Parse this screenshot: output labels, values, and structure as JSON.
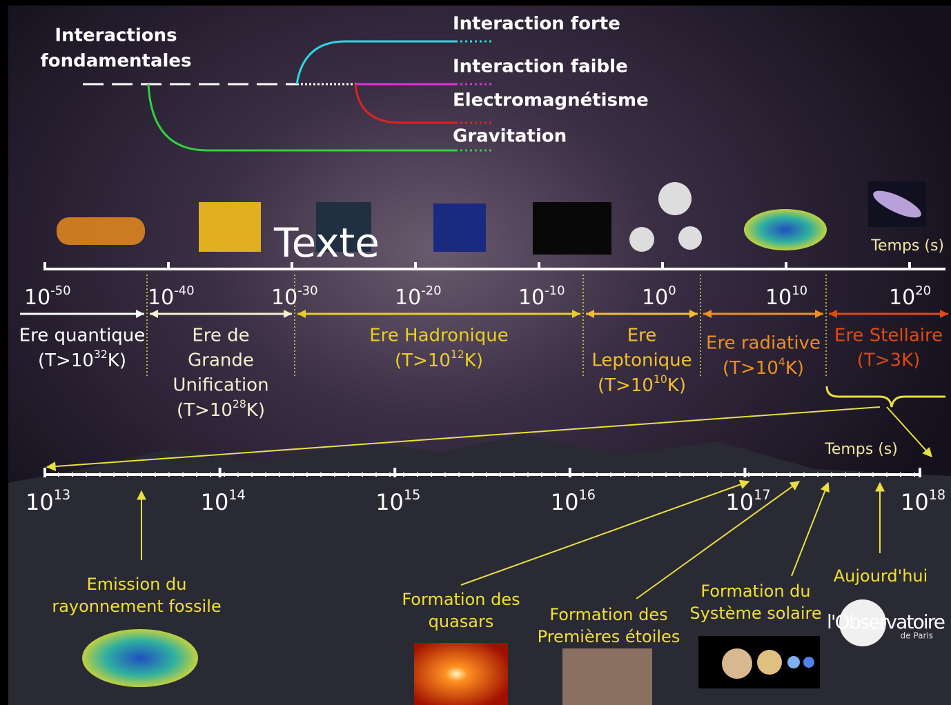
{
  "interactions": {
    "title": [
      "Interactions",
      "fondamentales"
    ],
    "forces": [
      {
        "name": "Interaction forte",
        "color": "#2fd6e0"
      },
      {
        "name": "Interaction faible",
        "color": "#e030e0"
      },
      {
        "name": "Electromagnétisme",
        "color": "#e02020"
      },
      {
        "name": "Gravitation",
        "color": "#30d040"
      }
    ]
  },
  "overlay": "Texte",
  "top_axis": {
    "label": "Temps (s)",
    "base": "10",
    "exps": [
      -50,
      -40,
      -30,
      -20,
      -10,
      0,
      10,
      20
    ]
  },
  "eras": [
    {
      "lines": [
        "Ere quantique"
      ],
      "temp": {
        "pre": "(T>10",
        "exp": 32,
        "post": "K)"
      },
      "color": "#ffffff"
    },
    {
      "lines": [
        "Ere de",
        "Grande",
        "Unification"
      ],
      "temp": {
        "pre": "(T>10",
        "exp": 28,
        "post": "K)"
      },
      "color": "#f4f0d0"
    },
    {
      "lines": [
        "Ere Hadronique"
      ],
      "temp": {
        "pre": "(T>10",
        "exp": 12,
        "post": "K)"
      },
      "color": "#e8d020"
    },
    {
      "lines": [
        "Ere",
        "Leptonique"
      ],
      "temp": {
        "pre": "(T>10",
        "exp": 10,
        "post": "K)"
      },
      "color": "#f0c030"
    },
    {
      "lines": [
        "Ere radiative"
      ],
      "temp": {
        "pre": "(T>10",
        "exp": 4,
        "post": "K)"
      },
      "color": "#f09020"
    },
    {
      "lines": [
        "Ere Stellaire"
      ],
      "temp": "(T>3K)",
      "color": "#e04a10"
    }
  ],
  "bottom_axis": {
    "label": "Temps (s)",
    "base": "10",
    "exps": [
      13,
      14,
      15,
      16,
      17,
      18
    ]
  },
  "events": [
    {
      "lines": [
        "Emission du",
        "rayonnement fossile"
      ]
    },
    {
      "lines": [
        "Formation des",
        "quasars"
      ]
    },
    {
      "lines": [
        "Formation des",
        "Premières étoiles"
      ]
    },
    {
      "lines": [
        "Formation du",
        "Système solaire"
      ]
    },
    {
      "lines": [
        "Aujourd'hui"
      ]
    }
  ],
  "logo": {
    "name": "l'Observatoire",
    "sub": "de Paris"
  }
}
